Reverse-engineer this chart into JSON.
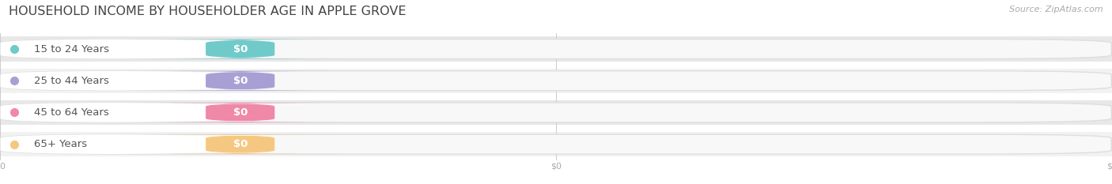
{
  "title": "HOUSEHOLD INCOME BY HOUSEHOLDER AGE IN APPLE GROVE",
  "source": "Source: ZipAtlas.com",
  "categories": [
    "15 to 24 Years",
    "25 to 44 Years",
    "45 to 64 Years",
    "65+ Years"
  ],
  "values": [
    0,
    0,
    0,
    0
  ],
  "bar_colors": [
    "#70cac9",
    "#a8a0d4",
    "#f088a8",
    "#f5c882"
  ],
  "background_color": "#ffffff",
  "title_fontsize": 11.5,
  "source_fontsize": 8,
  "label_fontsize": 9.5,
  "tick_fontsize": 8,
  "figsize": [
    14.06,
    2.33
  ],
  "dpi": 100,
  "row_even_color": "#f2f2f2",
  "row_odd_color": "#e8e8e8",
  "pill_bg_color": "#f0f0f0",
  "pill_edge_color": "#dedede",
  "tick_color": "#aaaaaa",
  "label_text_color": "#555555",
  "value_text_color": "#ffffff",
  "title_color": "#444444",
  "source_color": "#aaaaaa"
}
